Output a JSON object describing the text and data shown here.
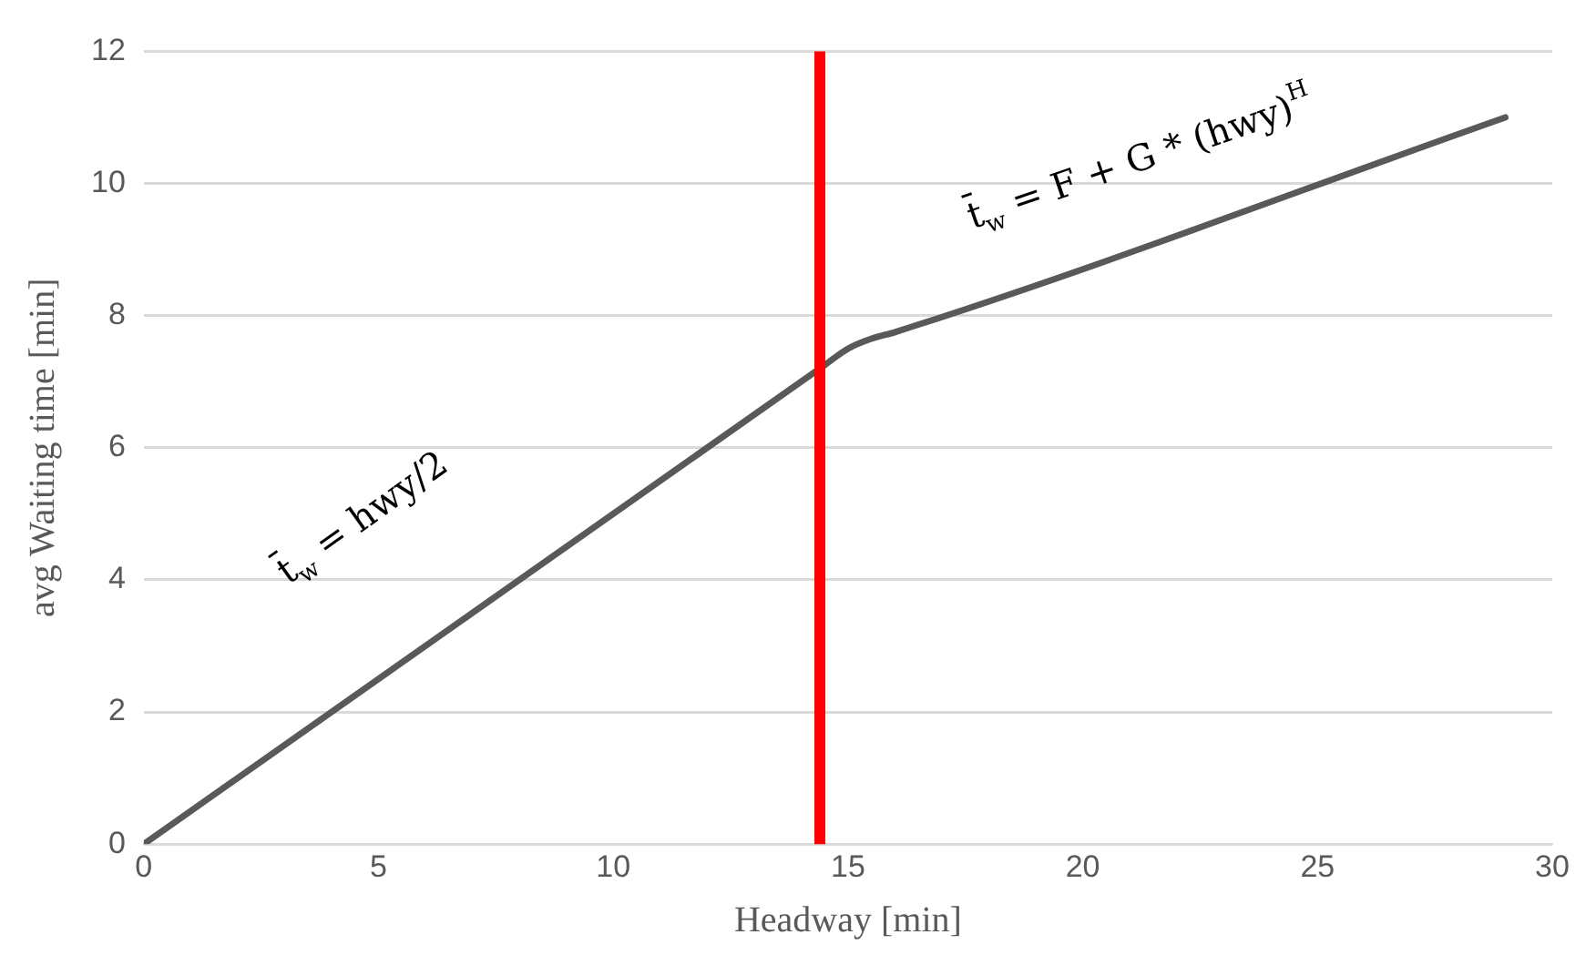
{
  "chart_data": {
    "type": "line",
    "xlabel": "Headway [min]",
    "ylabel": "avg Waiting time [min]",
    "x": [
      0,
      14.5,
      15,
      15.5,
      16,
      29
    ],
    "series": [
      {
        "color": "#595959",
        "values": [
          0,
          7.25,
          7.5,
          7.65,
          7.75,
          11
        ]
      }
    ],
    "xlim": [
      0,
      30
    ],
    "xticks": [
      0,
      5,
      10,
      15,
      20,
      25,
      30
    ],
    "ylim": [
      0,
      12
    ],
    "yticks": [
      0,
      2,
      4,
      6,
      8,
      10,
      12
    ],
    "grid": "y",
    "legend": false,
    "marker": "none",
    "line_style": "solid",
    "ref_lines": [
      {
        "axis": "x",
        "value": 14.4,
        "color": "#ff0000",
        "line_style": "solid"
      }
    ],
    "annotations": [
      "t̄$_{w}$ = hwy/2",
      "t̄$_{w}$ = F + G * (hwy)$^{H}$"
    ]
  }
}
